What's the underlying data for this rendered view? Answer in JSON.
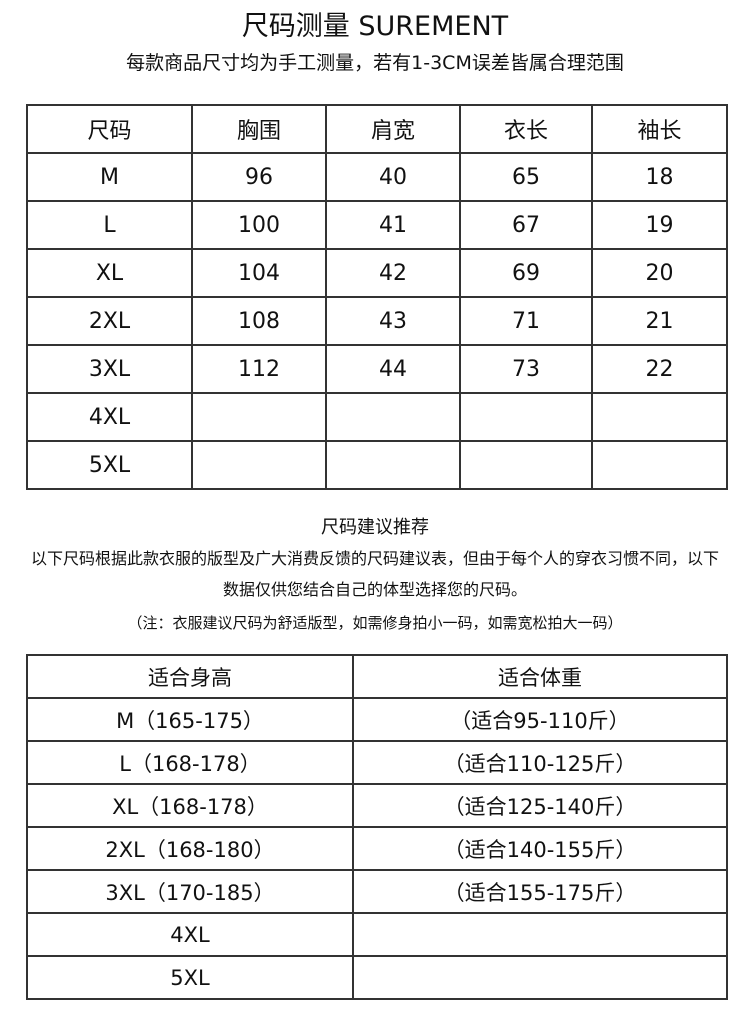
{
  "title": "尺码测量  SUREMENT",
  "subtitle": "每款商品尺寸均为手工测量，若有1-3CM误差皆属合理范围",
  "measure_table": {
    "headers": [
      "尺码",
      "胸围",
      "肩宽",
      "衣长",
      "袖长"
    ],
    "rows": [
      [
        "M",
        "96",
        "40",
        "65",
        "18"
      ],
      [
        "L",
        "100",
        "41",
        "67",
        "19"
      ],
      [
        "XL",
        "104",
        "42",
        "69",
        "20"
      ],
      [
        "2XL",
        "108",
        "43",
        "71",
        "21"
      ],
      [
        "3XL",
        "112",
        "44",
        "73",
        "22"
      ],
      [
        "4XL",
        "",
        "",
        "",
        ""
      ],
      [
        "5XL",
        "",
        "",
        "",
        ""
      ]
    ]
  },
  "recommendation": {
    "title": "尺码建议推荐",
    "line1": "以下尺码根据此款衣服的版型及广大消费反馈的尺码建议表，但由于每个人的穿衣习惯不同，以下",
    "line2": "数据仅供您结合自己的体型选择您的尺码。",
    "note": "（注：衣服建议尺码为舒适版型，如需修身拍小一码，如需宽松拍大一码）"
  },
  "fit_table": {
    "headers": [
      "适合身高",
      "适合体重"
    ],
    "rows": [
      [
        "M（165-175）",
        "（适合95-110斤）"
      ],
      [
        "L（168-178）",
        "（适合110-125斤）"
      ],
      [
        "XL（168-178）",
        "（适合125-140斤）"
      ],
      [
        "2XL（168-180）",
        "（适合140-155斤）"
      ],
      [
        "3XL（170-185）",
        "（适合155-175斤）"
      ],
      [
        "4XL",
        ""
      ],
      [
        "5XL",
        ""
      ]
    ]
  }
}
